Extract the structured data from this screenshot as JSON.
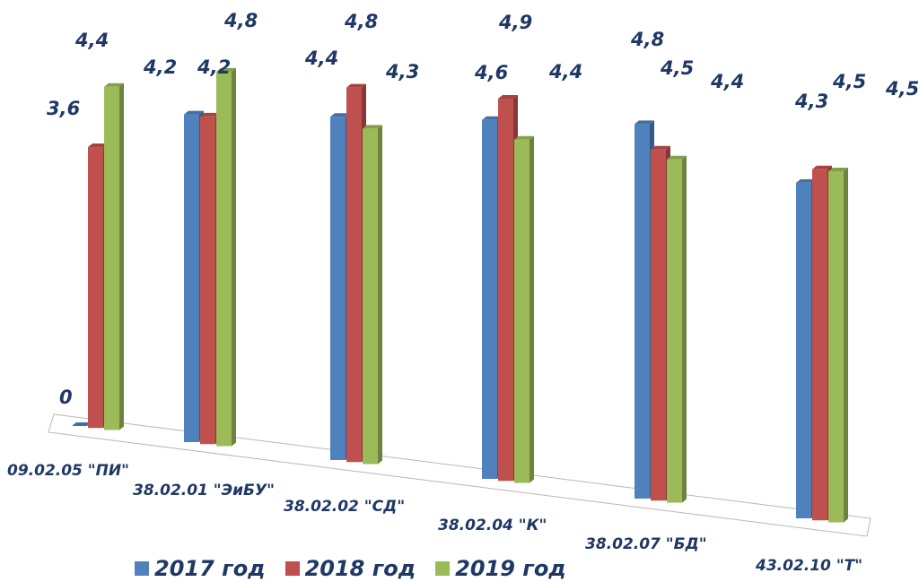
{
  "chart_data": {
    "type": "bar",
    "categories": [
      "09.02.05 \"ПИ\"",
      "38.02.01 \"ЭиБУ\"",
      "38.02.02 \"СД\"",
      "38.02.04 \"К\"",
      "38.02.07 \"БД\"",
      "43.02.10 \"Т\""
    ],
    "series": [
      {
        "name": "2017  год",
        "color": "#4f81bd",
        "values": [
          0,
          4.2,
          4.4,
          4.6,
          4.8,
          4.3
        ],
        "labels": [
          "0",
          "4,2",
          "4,4",
          "4,6",
          "4,8",
          "4,3"
        ]
      },
      {
        "name": "2018  год",
        "color": "#c0504d",
        "values": [
          3.6,
          4.2,
          4.8,
          4.9,
          4.5,
          4.5
        ],
        "labels": [
          "3,6",
          "4,2",
          "4,8",
          "4,9",
          "4,5",
          "4,5"
        ]
      },
      {
        "name": "2019  год",
        "color": "#9bbb59",
        "values": [
          4.4,
          4.8,
          4.3,
          4.4,
          4.4,
          4.5
        ],
        "labels": [
          "4,4",
          "4,8",
          "4,3",
          "4,4",
          "4,4",
          "4,5"
        ]
      }
    ],
    "legend_position": "bottom",
    "grid": false,
    "title": "",
    "xlabel": "",
    "ylabel": ""
  }
}
